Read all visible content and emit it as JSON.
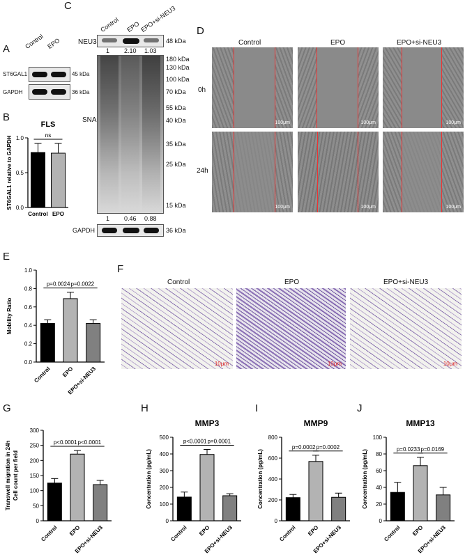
{
  "panel_letters": {
    "A": "A",
    "B": "B",
    "C": "C",
    "D": "D",
    "E": "E",
    "F": "F",
    "G": "G",
    "H": "H",
    "I": "I",
    "J": "J"
  },
  "blot_A": {
    "lanes": [
      "Control",
      "EPO"
    ],
    "rows": [
      {
        "name": "ST6GAL1",
        "kda": "45 kDa"
      },
      {
        "name": "GAPDH",
        "kda": "36 kDa"
      }
    ]
  },
  "blot_C": {
    "lanes": [
      "Control",
      "EPO",
      "EPO+si-NEU3"
    ],
    "neu3": {
      "name": "NEU3",
      "kda": "48 kDa",
      "quant": [
        "1",
        "2.10",
        "1.03"
      ]
    },
    "sna": {
      "name": "SNA",
      "markers": [
        "180 kDa",
        "130 kDa",
        "100 kDa",
        "70 kDa",
        "55 kDa",
        "40 kDa",
        "35 kDa",
        "25 kDa",
        "15 kDa"
      ],
      "quant": [
        "1",
        "0.46",
        "0.88"
      ]
    },
    "gapdh": {
      "name": "GAPDH",
      "kda": "36 kDa"
    }
  },
  "panel_D": {
    "columns": [
      "Control",
      "EPO",
      "EPO+si-NEU3"
    ],
    "rows": [
      "0h",
      "24h"
    ],
    "scale_bar": "100μm"
  },
  "panel_F": {
    "columns": [
      "Control",
      "EPO",
      "EPO+si-NEU3"
    ],
    "scale_bar": "10μm"
  },
  "chart_data": [
    {
      "id": "B",
      "type": "bar",
      "title": "FLS",
      "ylabel": "ST6GAL1 relative to GAPDH",
      "categories": [
        "Control",
        "EPO"
      ],
      "values": [
        0.79,
        0.78
      ],
      "errors": [
        0.13,
        0.14
      ],
      "ylim": [
        0,
        1.0
      ],
      "yticks": [
        "0.0",
        "0.5",
        "1.0"
      ],
      "colors": [
        "#000000",
        "#b3b3b3"
      ],
      "annotations": [
        {
          "text": "ns",
          "from": 0,
          "to": 1
        }
      ]
    },
    {
      "id": "E",
      "type": "bar",
      "title": "",
      "ylabel": "Mobility Ratio",
      "categories": [
        "Control",
        "EPO",
        "EPO+si-NEU3"
      ],
      "values": [
        0.42,
        0.69,
        0.42
      ],
      "errors": [
        0.04,
        0.07,
        0.04
      ],
      "ylim": [
        0,
        1.0
      ],
      "yticks": [
        "0.0",
        "0.2",
        "0.4",
        "0.6",
        "0.8",
        "1.0"
      ],
      "colors": [
        "#000000",
        "#b3b3b3",
        "#808080"
      ],
      "annotations": [
        {
          "text": "p=0.0024",
          "from": 0,
          "to": 1
        },
        {
          "text": "p=0.0022",
          "from": 1,
          "to": 2
        }
      ]
    },
    {
      "id": "G",
      "type": "bar",
      "title": "",
      "ylabel": "Transwell migration in 24h",
      "ylabel2": "Cell count per field",
      "categories": [
        "Control",
        "EPO",
        "EPO+si-NEU3"
      ],
      "values": [
        125,
        221,
        120
      ],
      "errors": [
        15,
        12,
        14
      ],
      "ylim": [
        0,
        300
      ],
      "yticks": [
        "0",
        "50",
        "100",
        "150",
        "200",
        "250",
        "300"
      ],
      "colors": [
        "#000000",
        "#b3b3b3",
        "#808080"
      ],
      "annotations": [
        {
          "text": "p<0.0001",
          "from": 0,
          "to": 1
        },
        {
          "text": "p<0.0001",
          "from": 1,
          "to": 2
        }
      ]
    },
    {
      "id": "H",
      "type": "bar",
      "title": "MMP3",
      "ylabel": "Concentration (pg/mL)",
      "categories": [
        "Control",
        "EPO",
        "EPO+si-NEU3"
      ],
      "values": [
        142,
        397,
        150
      ],
      "errors": [
        30,
        30,
        12
      ],
      "ylim": [
        0,
        500
      ],
      "yticks": [
        "0",
        "100",
        "200",
        "300",
        "400",
        "500"
      ],
      "colors": [
        "#000000",
        "#b3b3b3",
        "#808080"
      ],
      "annotations": [
        {
          "text": "p<0.0001",
          "from": 0,
          "to": 1
        },
        {
          "text": "p=0.0001",
          "from": 1,
          "to": 2
        }
      ]
    },
    {
      "id": "I",
      "type": "bar",
      "title": "MMP9",
      "ylabel": "Concentration (pg/mL)",
      "categories": [
        "Control",
        "EPO",
        "EPO+si-NEU3"
      ],
      "values": [
        222,
        568,
        225
      ],
      "errors": [
        30,
        60,
        40
      ],
      "ylim": [
        0,
        800
      ],
      "yticks": [
        "0",
        "200",
        "400",
        "600",
        "800"
      ],
      "colors": [
        "#000000",
        "#b3b3b3",
        "#808080"
      ],
      "annotations": [
        {
          "text": "p=0.0002",
          "from": 0,
          "to": 1
        },
        {
          "text": "p=0.0002",
          "from": 1,
          "to": 2
        }
      ]
    },
    {
      "id": "J",
      "type": "bar",
      "title": "MMP13",
      "ylabel": "Concentration (pg/mL)",
      "categories": [
        "Control",
        "EPO",
        "EPO+si-NEU3"
      ],
      "values": [
        34,
        66,
        31
      ],
      "errors": [
        12,
        10,
        9
      ],
      "ylim": [
        0,
        100
      ],
      "yticks": [
        "0",
        "20",
        "40",
        "60",
        "80",
        "100"
      ],
      "colors": [
        "#000000",
        "#b3b3b3",
        "#808080"
      ],
      "annotations": [
        {
          "text": "p=0.0233",
          "from": 0,
          "to": 1
        },
        {
          "text": "p=0.0169",
          "from": 1,
          "to": 2
        }
      ]
    }
  ]
}
